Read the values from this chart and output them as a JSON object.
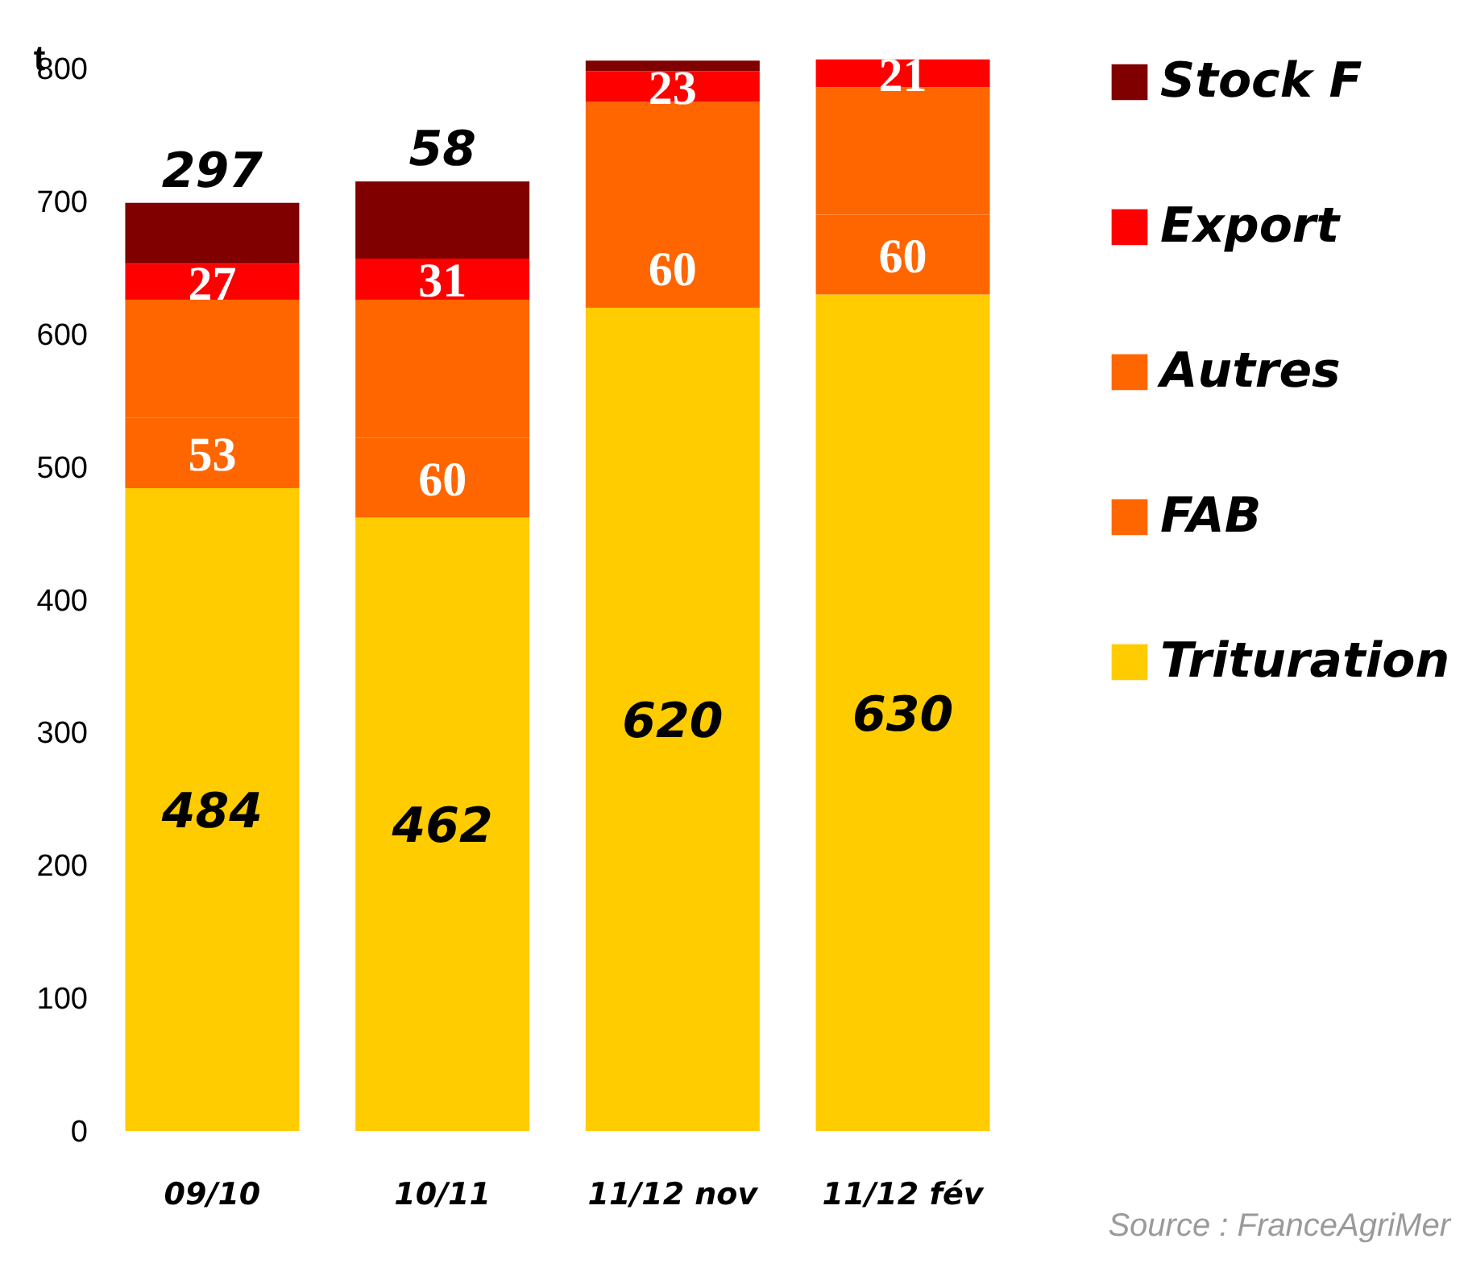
{
  "chart_data": {
    "type": "bar",
    "stacked": true,
    "ylabel": "t",
    "categories": [
      "09/10",
      "10/11",
      "11/12 nov",
      "11/12 fév"
    ],
    "series": [
      {
        "name": "Trituration",
        "color": "#ffcc00",
        "values": [
          484,
          462,
          620,
          630
        ],
        "value_labels": [
          "484",
          "462",
          "620",
          "630"
        ]
      },
      {
        "name": "FAB",
        "color": "#ff6600",
        "values": [
          53,
          60,
          60,
          60
        ],
        "value_labels": [
          "53",
          "60",
          "60",
          "60"
        ]
      },
      {
        "name": "Autres",
        "color": "#ff6600",
        "values": [
          89,
          104,
          95,
          96
        ],
        "value_labels": [
          null,
          null,
          null,
          null
        ]
      },
      {
        "name": "Export",
        "color": "#ff0000",
        "values": [
          27,
          31,
          23,
          21
        ],
        "value_labels": [
          "27",
          "31",
          "23",
          "21"
        ]
      },
      {
        "name": "Stock F",
        "color": "#800000",
        "values": [
          46,
          58,
          8,
          null
        ],
        "value_labels": [
          null,
          "58",
          null,
          null
        ]
      }
    ],
    "ylim": [
      0,
      808
    ],
    "yticks": [
      0,
      100,
      200,
      300,
      400,
      500,
      600,
      700,
      800
    ],
    "grid": false,
    "legend": "right",
    "annotations": [
      {
        "text": "297",
        "x": "09/10",
        "y": 699
      },
      "Source : FranceAgriMer"
    ]
  }
}
